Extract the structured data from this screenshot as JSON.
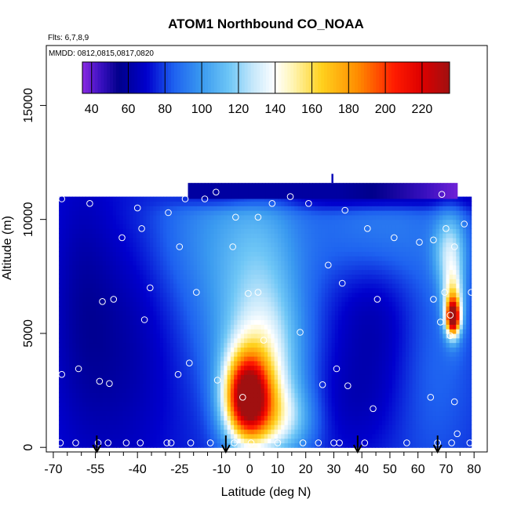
{
  "chart_data": {
    "type": "heatmap",
    "title": "ATOM1 Northbound CO_NOAA",
    "info_lines": [
      "Flts: 6,7,8,9",
      "MMDD: 0812,0815,0817,0820"
    ],
    "xlabel": "Latitude (deg N)",
    "ylabel": "Altitude (m)",
    "xlim": [
      -70,
      80
    ],
    "ylim": [
      0,
      17000
    ],
    "x_ticks": [
      -70,
      -55,
      -40,
      -25,
      -10,
      0,
      10,
      20,
      30,
      40,
      50,
      60,
      70,
      80
    ],
    "x_minor_ticks": [
      -65,
      -60,
      -50,
      -45,
      -35,
      -30,
      -20,
      -15,
      -5,
      5,
      15,
      25,
      35,
      45,
      55,
      65,
      75
    ],
    "y_ticks": [
      0,
      5000,
      10000,
      15000
    ],
    "colorbar": {
      "range": [
        35,
        235
      ],
      "ticks": [
        40,
        60,
        80,
        100,
        120,
        140,
        160,
        180,
        200,
        220
      ],
      "colors": [
        {
          "v": 35,
          "c": "#8a2be2"
        },
        {
          "v": 45,
          "c": "#3a10c0"
        },
        {
          "v": 55,
          "c": "#00008b"
        },
        {
          "v": 70,
          "c": "#0000cd"
        },
        {
          "v": 85,
          "c": "#1e62f0"
        },
        {
          "v": 100,
          "c": "#3a9af0"
        },
        {
          "v": 115,
          "c": "#6ec6f6"
        },
        {
          "v": 128,
          "c": "#c6e8fb"
        },
        {
          "v": 140,
          "c": "#ffffff"
        },
        {
          "v": 150,
          "c": "#fff4b0"
        },
        {
          "v": 165,
          "c": "#ffd21e"
        },
        {
          "v": 185,
          "c": "#ff8c00"
        },
        {
          "v": 205,
          "c": "#ff1a00"
        },
        {
          "v": 220,
          "c": "#dc0000"
        },
        {
          "v": 235,
          "c": "#a01010"
        }
      ]
    },
    "field": {
      "lat_range": [
        -68,
        79
      ],
      "alt_top": 11000,
      "background": 75,
      "features": [
        {
          "kind": "blob",
          "lat": -1,
          "alt": 2200,
          "slat": 5.5,
          "salt": 1300,
          "amp": 135
        },
        {
          "kind": "blob",
          "lat": 5,
          "alt": 3200,
          "slat": 9,
          "salt": 2200,
          "amp": 45
        },
        {
          "kind": "blob",
          "lat": 10,
          "alt": 1200,
          "slat": 9,
          "salt": 1100,
          "amp": 40
        },
        {
          "kind": "blob",
          "lat": 0,
          "alt": 5000,
          "slat": 14,
          "salt": 2500,
          "amp": 20
        },
        {
          "kind": "blob",
          "lat": 72.5,
          "alt": 5700,
          "slat": 1.6,
          "salt": 500,
          "amp": 130
        },
        {
          "kind": "blob",
          "lat": 72.5,
          "alt": 6300,
          "slat": 2.5,
          "salt": 1000,
          "amp": 70
        },
        {
          "kind": "blob",
          "lat": 71.5,
          "alt": 8600,
          "slat": 4,
          "salt": 1200,
          "amp": 45
        },
        {
          "kind": "blob",
          "lat": -12,
          "alt": 9500,
          "slat": 18,
          "salt": 2500,
          "amp": 20
        },
        {
          "kind": "blob",
          "lat": 5,
          "alt": 8000,
          "slat": 10,
          "salt": 3000,
          "amp": 18
        },
        {
          "kind": "blob",
          "lat": 45,
          "alt": 9500,
          "slat": 16,
          "salt": 1800,
          "amp": 18
        },
        {
          "kind": "blob",
          "lat": 65,
          "alt": 4000,
          "slat": 12,
          "salt": 4000,
          "amp": 12
        },
        {
          "kind": "blob",
          "lat": -48,
          "alt": 4500,
          "slat": 14,
          "salt": 4000,
          "amp": -15
        },
        {
          "kind": "blob",
          "lat": -60,
          "alt": 7000,
          "slat": 7,
          "salt": 4000,
          "amp": -8
        },
        {
          "kind": "blob",
          "lat": 45,
          "alt": 5500,
          "slat": 11,
          "salt": 2500,
          "amp": -15
        },
        {
          "kind": "blob",
          "lat": 35,
          "alt": 1800,
          "slat": 12,
          "salt": 1500,
          "amp": -8
        },
        {
          "kind": "blob",
          "lat": 45,
          "alt": 10900,
          "slat": 30,
          "salt": 350,
          "amp": -20
        },
        {
          "kind": "blob",
          "lat": -10,
          "alt": 10900,
          "slat": 14,
          "salt": 300,
          "amp": -15
        }
      ]
    },
    "top_cap": {
      "lat_start": -22,
      "lat_end": 74,
      "alt_bottom": 10900,
      "alt_top": 11600
    },
    "top_spike": {
      "lat": 29.5,
      "alt_bottom": 11600,
      "alt_top": 12000
    },
    "samples": [
      [
        -67.5,
        200
      ],
      [
        -67,
        3200
      ],
      [
        -67,
        10900
      ],
      [
        -62,
        200
      ],
      [
        -61,
        3450
      ],
      [
        -57,
        10700
      ],
      [
        -54,
        200
      ],
      [
        -53.5,
        2900
      ],
      [
        -52.5,
        6400
      ],
      [
        -50.5,
        200
      ],
      [
        -50,
        2800
      ],
      [
        -48.5,
        6500
      ],
      [
        -45.5,
        9200
      ],
      [
        -44,
        200
      ],
      [
        -40,
        10500
      ],
      [
        -39,
        200
      ],
      [
        -38.5,
        9600
      ],
      [
        -37.5,
        5600
      ],
      [
        -35.5,
        7000
      ],
      [
        -29.5,
        200
      ],
      [
        -29,
        10300
      ],
      [
        -28,
        200
      ],
      [
        -25.5,
        3200
      ],
      [
        -25,
        8800
      ],
      [
        -23,
        10900
      ],
      [
        -21.5,
        3700
      ],
      [
        -21,
        200
      ],
      [
        -19,
        6800
      ],
      [
        -16,
        10900
      ],
      [
        -14,
        200
      ],
      [
        -12,
        11200
      ],
      [
        -11.5,
        2950
      ],
      [
        -6,
        8800
      ],
      [
        -5.5,
        200
      ],
      [
        -5,
        10100
      ],
      [
        -2.5,
        2200
      ],
      [
        -0.5,
        6750
      ],
      [
        0.5,
        200
      ],
      [
        3,
        6800
      ],
      [
        3,
        10100
      ],
      [
        5,
        4700
      ],
      [
        8,
        10700
      ],
      [
        10,
        200
      ],
      [
        14.5,
        11000
      ],
      [
        18,
        5050
      ],
      [
        19,
        200
      ],
      [
        21,
        10700
      ],
      [
        24.5,
        200
      ],
      [
        26,
        2750
      ],
      [
        28,
        8000
      ],
      [
        30,
        200
      ],
      [
        31,
        3450
      ],
      [
        32,
        200
      ],
      [
        33,
        7200
      ],
      [
        34,
        10400
      ],
      [
        35,
        2700
      ],
      [
        41,
        200
      ],
      [
        42,
        9600
      ],
      [
        44,
        1700
      ],
      [
        45.5,
        6500
      ],
      [
        51.5,
        9200
      ],
      [
        56,
        200
      ],
      [
        60.5,
        9000
      ],
      [
        64.5,
        2200
      ],
      [
        65.5,
        6500
      ],
      [
        65.5,
        9100
      ],
      [
        67,
        200
      ],
      [
        68,
        5500
      ],
      [
        68.5,
        11100
      ],
      [
        69.5,
        6800
      ],
      [
        70,
        9600
      ],
      [
        71.5,
        5800
      ],
      [
        71.5,
        4900
      ],
      [
        72,
        200
      ],
      [
        73,
        8800
      ],
      [
        73,
        2000
      ],
      [
        74,
        600
      ],
      [
        76.5,
        9800
      ],
      [
        78.5,
        200
      ],
      [
        79,
        6800
      ]
    ],
    "arrows": [
      -54.5,
      -8.5,
      38.5,
      67
    ]
  }
}
